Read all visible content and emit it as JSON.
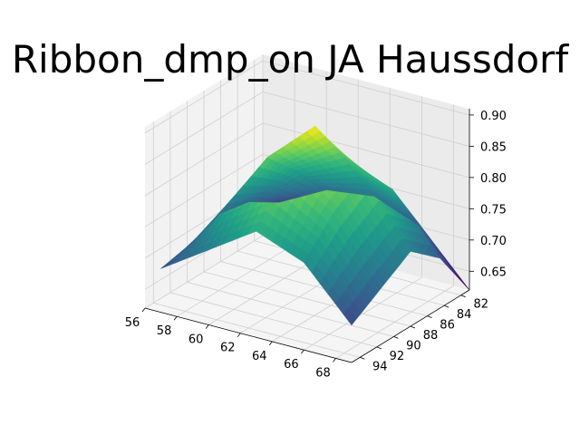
{
  "chart_data": {
    "type": "surface3d",
    "title": "Ribbon_dmp_on JA Haussdorf",
    "colormap": "viridis",
    "grid": true,
    "x": {
      "label": "",
      "lim": [
        56,
        69
      ],
      "ticks": [
        "56",
        "58",
        "60",
        "62",
        "64",
        "66",
        "68"
      ]
    },
    "y": {
      "label": "",
      "lim": [
        81,
        95
      ],
      "ticks": [
        "82",
        "84",
        "86",
        "88",
        "90",
        "92",
        "94"
      ]
    },
    "z": {
      "label": "",
      "lim": [
        0.62,
        0.91
      ],
      "ticks": [
        "0.65",
        "0.70",
        "0.75",
        "0.80",
        "0.85",
        "0.90"
      ]
    },
    "surface": {
      "x": [
        57,
        60,
        63,
        66,
        69
      ],
      "y": [
        81,
        84.5,
        88,
        91.5,
        95
      ],
      "z": [
        [
          0.68,
          0.72,
          0.73,
          0.7,
          0.62
        ],
        [
          0.71,
          0.78,
          0.82,
          0.79,
          0.7
        ],
        [
          0.72,
          0.83,
          0.9,
          0.84,
          0.74
        ],
        [
          0.7,
          0.8,
          0.86,
          0.81,
          0.71
        ],
        [
          0.69,
          0.74,
          0.79,
          0.76,
          0.68
        ]
      ],
      "z_range": [
        0.62,
        0.9
      ]
    }
  }
}
